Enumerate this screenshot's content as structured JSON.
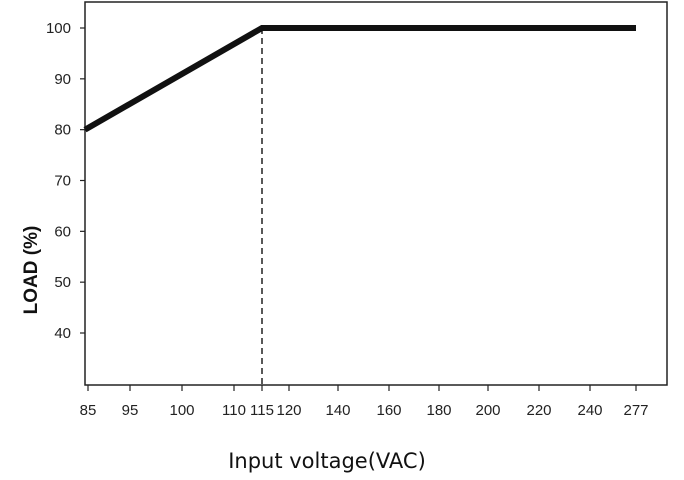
{
  "chart_data": {
    "type": "line",
    "title": "",
    "xlabel": "Input voltage(VAC)",
    "ylabel": "LOAD (%)",
    "x_tick_labels": [
      "85",
      "95",
      "100",
      "110",
      "115",
      "120",
      "140",
      "160",
      "180",
      "200",
      "220",
      "240",
      "277"
    ],
    "y_ticks": [
      40,
      50,
      60,
      70,
      80,
      90,
      100
    ],
    "ylim": [
      30,
      105
    ],
    "grid": false,
    "legend": "none",
    "series": [
      {
        "x": [
          "85",
          "115",
          "277"
        ],
        "y": [
          80,
          100,
          100
        ]
      }
    ],
    "reference_lines": [
      {
        "orientation": "vertical",
        "x": "115",
        "style": "dashed"
      }
    ],
    "colors": {
      "line": "#111111",
      "axes": "#222222"
    }
  }
}
